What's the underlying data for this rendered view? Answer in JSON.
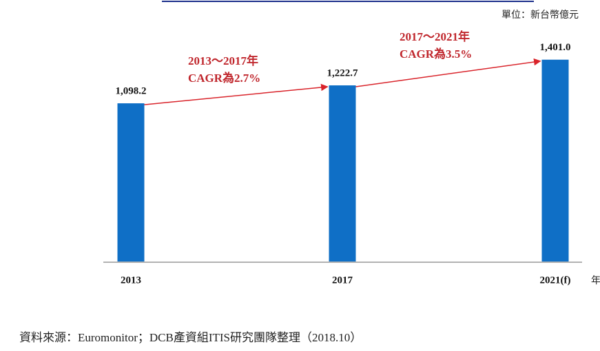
{
  "chart_data": {
    "type": "bar",
    "unit": "單位：新台幣億元",
    "x_unit": "年",
    "categories": [
      "2013",
      "2017",
      "2021(f)"
    ],
    "values": [
      1098.2,
      1222.7,
      1401.0
    ],
    "value_labels": [
      "1,098.2",
      "1,222.7",
      "1,401.0"
    ],
    "color": "#0f6fc6",
    "ylim": [
      0,
      1500
    ],
    "annotations": [
      [
        "2013～2017年",
        "CAGR為2.7%"
      ],
      [
        "2017～2021年",
        "CAGR為3.5%"
      ]
    ],
    "source": "資料來源：Euromonitor；DCB產資組ITIS研究團隊整理（2018.10）"
  }
}
